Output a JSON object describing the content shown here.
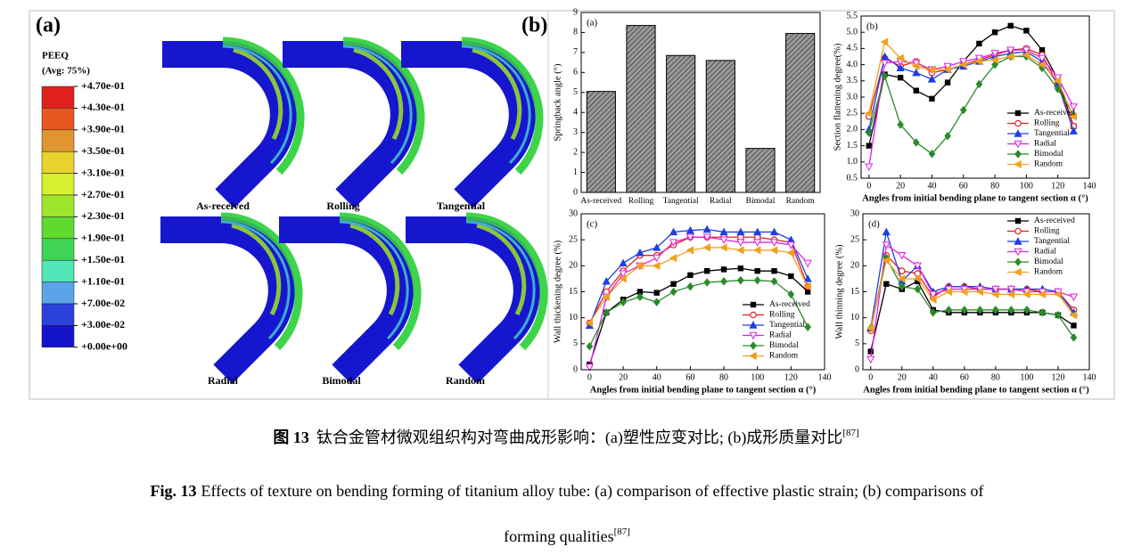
{
  "figure_labels": [
    "(a)",
    "(b)"
  ],
  "figure_a": {
    "legend_title": "PEEQ",
    "legend_subtitle": "(Avg: 75%)",
    "contour_labels": [
      "+4.70e-01",
      "+4.30e-01",
      "+3.90e-01",
      "+3.50e-01",
      "+3.10e-01",
      "+2.70e-01",
      "+2.30e-01",
      "+1.90e-01",
      "+1.50e-01",
      "+1.10e-01",
      "+7.00e-02",
      "+3.00e-02",
      "+0.00e+00"
    ],
    "contour_colors": [
      "#e0201c",
      "#e8581e",
      "#e09530",
      "#e8d22e",
      "#d6ef2e",
      "#9fe52c",
      "#60da2e",
      "#3fd455",
      "#52e6b8",
      "#5aa4e8",
      "#2c40dc",
      "#1414cc"
    ],
    "tube_labels": [
      "As-received",
      "Rolling",
      "Tangential",
      "Radial",
      "Bimodal",
      "Random"
    ]
  },
  "chart_data": [
    {
      "type": "bar",
      "panel_label": "(a)",
      "ylabel": "Springback angle (°)",
      "categories": [
        "As-received",
        "Rolling",
        "Tangential",
        "Radial",
        "Bimodal",
        "Random"
      ],
      "values": [
        5.05,
        8.35,
        6.85,
        6.6,
        2.2,
        7.95
      ],
      "color": "#9a9a9a",
      "ylim": [
        0,
        9
      ],
      "yticks": [
        0,
        1,
        2,
        3,
        4,
        5,
        6,
        7,
        8,
        9
      ]
    },
    {
      "type": "line",
      "panel_label": "(b)",
      "ylabel": "Section flattening degree(%)",
      "xlabel": "Angles from initial bending plane to tangent section α (°)",
      "legend": "lower right",
      "x": [
        0,
        10,
        20,
        30,
        40,
        50,
        60,
        70,
        80,
        90,
        100,
        110,
        120,
        130
      ],
      "xlim": [
        -5,
        140
      ],
      "xticks": [
        0,
        20,
        40,
        60,
        80,
        100,
        120,
        140
      ],
      "ylim": [
        0.5,
        5.5
      ],
      "yticks": [
        0.5,
        {
          "value": 1,
          "label": "1.0"
        },
        1.5,
        {
          "value": 2,
          "label": "2.0"
        },
        2.5,
        {
          "value": 3,
          "label": "3.0"
        },
        3.5,
        {
          "value": 4,
          "label": "4.0"
        },
        4.5,
        {
          "value": 5,
          "label": "5.0"
        },
        5.5
      ],
      "series": [
        {
          "name": "As-received",
          "color": "#000000",
          "marker": "square",
          "values": [
            1.5,
            3.7,
            3.6,
            3.2,
            2.95,
            3.45,
            4.1,
            4.65,
            5.0,
            5.2,
            5.05,
            4.45,
            3.55,
            2.1
          ]
        },
        {
          "name": "Rolling",
          "color": "#e02020",
          "marker": "circle",
          "values": [
            2.4,
            4.2,
            3.95,
            4.1,
            3.75,
            3.85,
            4.0,
            4.15,
            4.3,
            4.45,
            4.5,
            4.3,
            3.4,
            2.1
          ]
        },
        {
          "name": "Tangential",
          "color": "#1f3fe0",
          "marker": "triangle",
          "values": [
            2.0,
            4.25,
            3.9,
            3.75,
            3.55,
            3.85,
            3.95,
            4.1,
            4.25,
            4.35,
            4.4,
            4.1,
            3.4,
            1.95
          ]
        },
        {
          "name": "Radial",
          "color": "#e020e0",
          "marker": "down",
          "values": [
            0.85,
            4.05,
            4.1,
            4.05,
            3.85,
            3.95,
            4.1,
            4.2,
            4.35,
            4.45,
            4.45,
            4.2,
            3.6,
            2.7
          ]
        },
        {
          "name": "Bimodal",
          "color": "#2a8a2a",
          "marker": "diamond",
          "values": [
            1.9,
            3.65,
            2.15,
            1.6,
            1.25,
            1.8,
            2.6,
            3.4,
            4.0,
            4.25,
            4.25,
            3.9,
            3.25,
            2.45
          ]
        },
        {
          "name": "Random",
          "color": "#f0a020",
          "marker": "left",
          "values": [
            2.5,
            4.7,
            4.2,
            3.95,
            3.85,
            3.85,
            4.0,
            4.1,
            4.15,
            4.25,
            4.3,
            4.0,
            3.5,
            2.4
          ]
        }
      ]
    },
    {
      "type": "line",
      "panel_label": "(c)",
      "ylabel": "Wall thickening degree (%)",
      "xlabel": "Angles from initial bending plane to tangent section α (°)",
      "legend": "lower right",
      "x": [
        0,
        10,
        20,
        30,
        40,
        50,
        60,
        70,
        80,
        90,
        100,
        110,
        120,
        130
      ],
      "xlim": [
        -5,
        140
      ],
      "xticks": [
        0,
        20,
        40,
        60,
        80,
        100,
        120,
        140
      ],
      "ylim": [
        0,
        30
      ],
      "yticks": [
        0,
        5,
        10,
        15,
        20,
        25,
        30
      ],
      "series": [
        {
          "name": "As-received",
          "color": "#000000",
          "marker": "square",
          "values": [
            1,
            11,
            13.5,
            15,
            14.8,
            16.5,
            18.2,
            19,
            19.3,
            19.5,
            19,
            19,
            18,
            15
          ]
        },
        {
          "name": "Rolling",
          "color": "#e02020",
          "marker": "circle",
          "values": [
            9,
            15,
            19,
            22,
            22,
            24,
            25.5,
            25.5,
            25.5,
            25.5,
            25.5,
            25,
            24.5,
            16
          ]
        },
        {
          "name": "Tangential",
          "color": "#1f3fe0",
          "marker": "triangle",
          "values": [
            8.5,
            17,
            20.5,
            22.5,
            23.5,
            26.5,
            26.8,
            27,
            26.5,
            26.5,
            26.5,
            26.5,
            25,
            17.5
          ]
        },
        {
          "name": "Radial",
          "color": "#e020e0",
          "marker": "down",
          "values": [
            0.5,
            14,
            18.5,
            20,
            21.5,
            24.5,
            25.5,
            25.5,
            25,
            24.5,
            24.5,
            24.5,
            24,
            20.5
          ]
        },
        {
          "name": "Bimodal",
          "color": "#2a8a2a",
          "marker": "diamond",
          "values": [
            4.5,
            11,
            13,
            14,
            13,
            15,
            16,
            16.8,
            17,
            17.2,
            17.2,
            17,
            14.5,
            8.2
          ]
        },
        {
          "name": "Random",
          "color": "#f0a020",
          "marker": "left",
          "values": [
            9,
            14,
            17.5,
            20,
            20,
            21.5,
            23,
            23.5,
            23.5,
            23,
            23,
            23,
            22.5,
            16
          ]
        }
      ]
    },
    {
      "type": "line",
      "panel_label": "(d)",
      "ylabel": "Wall thinning degree (%)",
      "xlabel": "Angles from initial bending plane to tangent section α (°)",
      "legend": "upper right",
      "x": [
        0,
        10,
        20,
        30,
        40,
        50,
        60,
        70,
        80,
        90,
        100,
        110,
        120,
        130
      ],
      "xlim": [
        -5,
        140
      ],
      "xticks": [
        0,
        20,
        40,
        60,
        80,
        100,
        120,
        140
      ],
      "ylim": [
        0,
        30
      ],
      "yticks": [
        0,
        5,
        10,
        15,
        20,
        25,
        30
      ],
      "series": [
        {
          "name": "As-received",
          "color": "#000000",
          "marker": "square",
          "values": [
            3.5,
            16.5,
            15.5,
            17,
            11.5,
            11,
            11,
            11,
            11,
            11,
            11,
            11,
            10.5,
            8.5
          ]
        },
        {
          "name": "Rolling",
          "color": "#e02020",
          "marker": "circle",
          "values": [
            7.5,
            22,
            19,
            18.5,
            14,
            16,
            16,
            15.5,
            15.5,
            15.5,
            15.5,
            15,
            15,
            11.5
          ]
        },
        {
          "name": "Tangential",
          "color": "#1f3fe0",
          "marker": "triangle",
          "values": [
            8,
            26.5,
            17,
            20,
            15,
            16,
            16,
            16,
            15.5,
            15.5,
            15.5,
            15.5,
            15,
            11
          ]
        },
        {
          "name": "Radial",
          "color": "#e020e0",
          "marker": "down",
          "values": [
            2,
            24,
            22,
            20,
            14.5,
            15.5,
            15.5,
            15.5,
            15.5,
            15.5,
            15,
            15,
            15,
            14
          ]
        },
        {
          "name": "Bimodal",
          "color": "#2a8a2a",
          "marker": "diamond",
          "values": [
            8,
            21.5,
            16,
            15.5,
            11,
            11.5,
            11.5,
            11.5,
            11.5,
            11.5,
            11.5,
            11,
            10.5,
            6.2
          ]
        },
        {
          "name": "Random",
          "color": "#f0a020",
          "marker": "left",
          "values": [
            8,
            21,
            17.5,
            17.5,
            13.5,
            15,
            15,
            15,
            14.5,
            14.5,
            14.5,
            14.5,
            14.5,
            10.5
          ]
        }
      ]
    }
  ],
  "caption": {
    "zh_label": "图 13",
    "zh_text": "钛合金管材微观组织构对弯曲成形影响：(a)塑性应变对比; (b)成形质量对比",
    "zh_ref": "[87]",
    "en_label": "Fig. 13",
    "en_text": [
      "Effects of texture on bending forming of titanium alloy tube: (a) comparison of effective plastic strain; (b) comparisons of",
      "forming qualities"
    ],
    "en_ref": "[87]"
  }
}
